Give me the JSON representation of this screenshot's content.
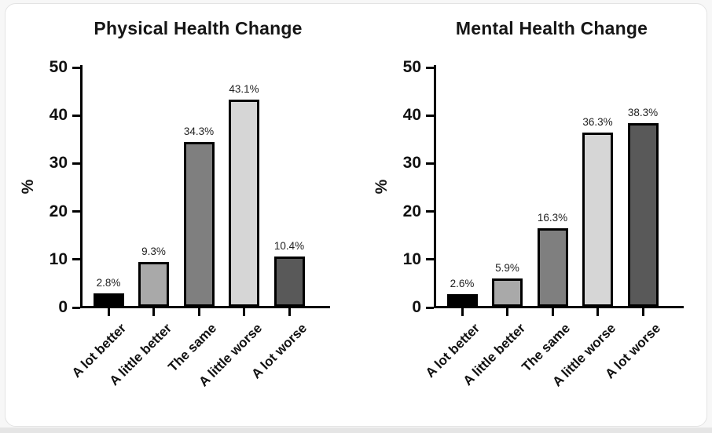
{
  "page": {
    "background_color": "#ffffff",
    "card_border_color": "#e3e3e3",
    "bottom_strip_color": "#e5e5e5"
  },
  "chart_data": [
    {
      "type": "bar",
      "title": "Physical Health Change",
      "ylabel": "%",
      "xlabel": "",
      "ylim": [
        0,
        50
      ],
      "yticks": [
        0,
        10,
        20,
        30,
        40,
        50
      ],
      "grid": false,
      "legend": "none",
      "categories": [
        "A lot better",
        "A little better",
        "The same",
        "A little worse",
        "A lot worse"
      ],
      "values": [
        2.8,
        9.3,
        34.3,
        43.1,
        10.4
      ],
      "value_labels": [
        "2.8%",
        "9.3%",
        "34.3%",
        "43.1%",
        "10.4%"
      ],
      "bar_colors": [
        "#000000",
        "#a9a9a9",
        "#7f7f7f",
        "#d6d6d6",
        "#595959"
      ],
      "bar_outline_color": "#000000"
    },
    {
      "type": "bar",
      "title": "Mental Health Change",
      "ylabel": "%",
      "xlabel": "",
      "ylim": [
        0,
        50
      ],
      "yticks": [
        0,
        10,
        20,
        30,
        40,
        50
      ],
      "grid": false,
      "legend": "none",
      "categories": [
        "A lot better",
        "A little better",
        "The same",
        "A little worse",
        "A lot worse"
      ],
      "values": [
        2.6,
        5.9,
        16.3,
        36.3,
        38.3
      ],
      "value_labels": [
        "2.6%",
        "5.9%",
        "16.3%",
        "36.3%",
        "38.3%"
      ],
      "bar_colors": [
        "#000000",
        "#a9a9a9",
        "#7f7f7f",
        "#d6d6d6",
        "#595959"
      ],
      "bar_outline_color": "#000000"
    }
  ]
}
